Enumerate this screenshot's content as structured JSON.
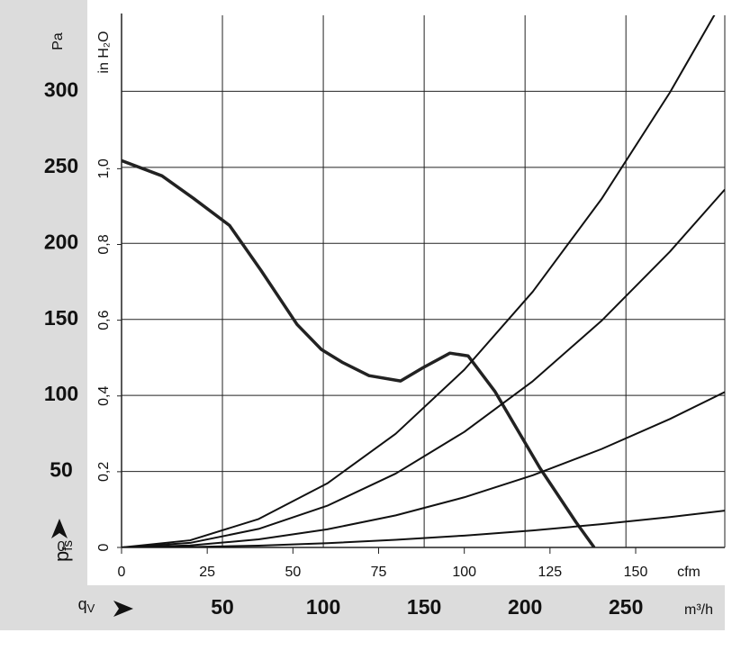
{
  "chart_data": {
    "type": "line",
    "y_label": "Pa",
    "y2_label": "in H₂O",
    "y_symbol": "p",
    "y_symbol_sub": "fs",
    "x2_symbol": "q",
    "x2_symbol_sub": "V",
    "x_label": "cfm",
    "x2_label": "m³/h",
    "xlim": [
      0,
      176
    ],
    "xticks": [
      0,
      25,
      50,
      75,
      100,
      125,
      150
    ],
    "x2lim": [
      0,
      299
    ],
    "x2ticks": [
      50,
      100,
      150,
      200,
      250
    ],
    "ylim": [
      0,
      350
    ],
    "yticks": [
      0,
      50,
      100,
      150,
      200,
      250,
      300
    ],
    "y2lim": [
      0,
      1.405
    ],
    "y2ticks": [
      0,
      {
        "value": 0.2,
        "label": "0,2"
      },
      {
        "value": 0.4,
        "label": "0,4"
      },
      {
        "value": 0.6,
        "label": "0,6"
      },
      {
        "value": 0.8,
        "label": "0,8"
      },
      {
        "value": 1.0,
        "label": "1,0"
      }
    ],
    "grid": true,
    "series": [
      {
        "color": "#222222",
        "x": [
          0,
          11.8,
          21,
          31.5,
          40.7,
          51.2,
          58.3,
          64.3,
          72.2,
          81.4,
          88,
          95.8,
          101.1,
          109,
          122.1,
          132.6,
          137.9
        ],
        "values": [
          254.4,
          244.4,
          229.6,
          211.8,
          182.2,
          146.7,
          130.2,
          121.9,
          113,
          109.5,
          118.3,
          127.8,
          126,
          102.4,
          52.1,
          16.6,
          0
        ]
      },
      {
        "color": "#111111",
        "x": [
          0,
          20,
          40,
          60,
          80,
          100,
          120,
          140,
          160,
          176
        ],
        "values": [
          0,
          4.7,
          18.7,
          42.1,
          74.8,
          116.9,
          168.3,
          229.1,
          299.3,
          362.1
        ]
      },
      {
        "color": "#111111",
        "x": [
          0,
          20,
          40,
          60,
          80,
          100,
          120,
          140,
          160,
          176
        ],
        "values": [
          0,
          3.0,
          12.2,
          27.4,
          48.6,
          76,
          109.4,
          149,
          194.6,
          235.4
        ]
      },
      {
        "color": "#111111",
        "x": [
          0,
          20,
          40,
          60,
          80,
          100,
          120,
          140,
          160,
          176
        ],
        "values": [
          0,
          1.3,
          5.3,
          11.9,
          21.1,
          33,
          47.5,
          64.7,
          84.5,
          102.2
        ]
      },
      {
        "color": "#111111",
        "x": [
          0,
          20,
          40,
          60,
          80,
          100,
          120,
          140,
          160,
          176
        ],
        "values": [
          0,
          0.3,
          1.2,
          2.8,
          5.0,
          7.8,
          11.2,
          15.3,
          20,
          24.2
        ]
      }
    ]
  }
}
